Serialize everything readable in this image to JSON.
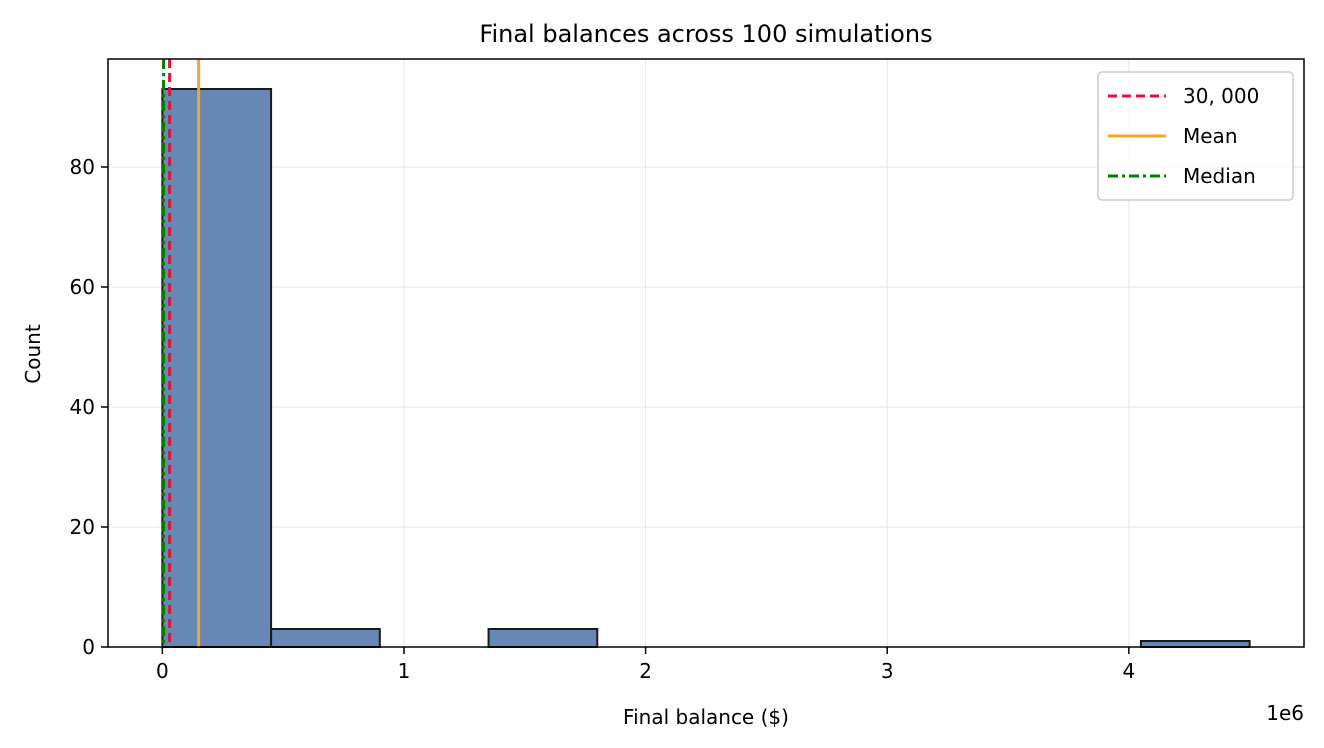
{
  "chart_data": {
    "type": "bar",
    "title": "Final balances across 100 simulations",
    "xlabel": "Final balance ($)",
    "ylabel": "Count",
    "x_offset_label": "1e6",
    "xlim": [
      -0.225,
      4.725
    ],
    "ylim": [
      0,
      98
    ],
    "x_ticks": [
      0,
      1,
      2,
      3,
      4
    ],
    "x_tick_labels": [
      "0",
      "1",
      "2",
      "3",
      "4"
    ],
    "y_ticks": [
      0,
      20,
      40,
      60,
      80
    ],
    "y_tick_labels": [
      "0",
      "20",
      "40",
      "60",
      "80"
    ],
    "grid": true,
    "bins": [
      {
        "start": 0.0,
        "end": 0.45,
        "count": 93
      },
      {
        "start": 0.45,
        "end": 0.9,
        "count": 3
      },
      {
        "start": 0.9,
        "end": 1.35,
        "count": 0
      },
      {
        "start": 1.35,
        "end": 1.8,
        "count": 3
      },
      {
        "start": 1.8,
        "end": 2.25,
        "count": 0
      },
      {
        "start": 2.25,
        "end": 2.7,
        "count": 0
      },
      {
        "start": 2.7,
        "end": 3.15,
        "count": 0
      },
      {
        "start": 3.15,
        "end": 3.6,
        "count": 0
      },
      {
        "start": 3.6,
        "end": 4.05,
        "count": 0
      },
      {
        "start": 4.05,
        "end": 4.5,
        "count": 1
      }
    ],
    "bar_color": "#4c72a8",
    "bar_edge_color": "#1a1a1a",
    "reference_lines": [
      {
        "label": "$30,000$",
        "display": "30, 000",
        "x": 0.03,
        "color": "#dc143c",
        "style": "dashed"
      },
      {
        "label": "Mean",
        "display": "Mean",
        "x": 0.15,
        "color": "#f5a623",
        "style": "solid"
      },
      {
        "label": "Median",
        "display": "Median",
        "x": 0.005,
        "color": "#008000",
        "style": "dashdot"
      }
    ],
    "legend_position": "top-right"
  }
}
